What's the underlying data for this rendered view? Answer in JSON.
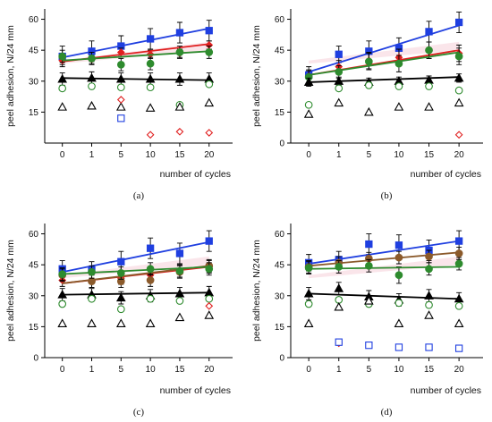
{
  "figure": {
    "colors": {
      "blue": "#1f3fe0",
      "red": "#e02020",
      "green": "#2e8b2e",
      "brown": "#8b5a2b",
      "black": "#000000",
      "pink_band": "#f4c6d0"
    }
  },
  "chart_data": [
    {
      "panel_label": "(a)",
      "type": "scatter",
      "xlabel": "number of cycles",
      "ylabel": "peel adhesion, N/24 mm",
      "xcategories": [
        "0",
        "1",
        "5",
        "10",
        "15",
        "20"
      ],
      "ylim": [
        0,
        65
      ],
      "yticks": [
        15,
        30,
        45,
        60
      ],
      "series": [
        {
          "color": "blue",
          "marker": "square",
          "filled": true,
          "values": [
            42,
            44.5,
            47,
            50.5,
            53.5,
            54.5
          ],
          "errors": [
            5,
            5,
            5,
            5,
            5,
            5
          ],
          "trend": [
            41.5,
            55.5
          ]
        },
        {
          "color": "red",
          "marker": "diamond",
          "filled": true,
          "values": [
            40,
            40.5,
            44,
            43,
            43.5,
            47.5
          ],
          "errors": [
            2,
            2,
            2,
            2,
            2,
            2
          ],
          "trend": [
            39.5,
            48
          ]
        },
        {
          "color": "green",
          "marker": "circle",
          "filled": true,
          "values": [
            42,
            41,
            38,
            38.5,
            44,
            44
          ],
          "errors": [
            3,
            3,
            3,
            3,
            3,
            3
          ],
          "trend": [
            40,
            44.5
          ]
        },
        {
          "color": "black",
          "marker": "triangle",
          "filled": true,
          "values": [
            31,
            31.5,
            31,
            31,
            31,
            31
          ],
          "errors": [
            3,
            3,
            3,
            3,
            3,
            3
          ],
          "trend": [
            31.5,
            30.5
          ]
        },
        {
          "color": "green",
          "marker": "circle",
          "filled": false,
          "values": [
            26.5,
            27.5,
            27,
            27,
            18.5,
            28.5
          ],
          "errors": [],
          "trend": null
        },
        {
          "color": "black",
          "marker": "triangle",
          "filled": false,
          "values": [
            17.5,
            18,
            17.5,
            17,
            17.5,
            19.5
          ],
          "errors": [],
          "trend": null
        },
        {
          "color": "red",
          "marker": "diamond",
          "filled": false,
          "values": [
            null,
            null,
            21,
            4,
            5.5,
            5
          ],
          "errors": [],
          "trend": null
        },
        {
          "color": "blue",
          "marker": "square",
          "filled": false,
          "values": [
            null,
            null,
            12,
            null,
            null,
            null
          ],
          "errors": [],
          "trend": null
        }
      ]
    },
    {
      "panel_label": "(b)",
      "type": "scatter",
      "xlabel": "number of cycles",
      "ylabel": "peel adhesion, N/24 mm",
      "xcategories": [
        "0",
        "1",
        "5",
        "10",
        "15",
        "20"
      ],
      "ylim": [
        0,
        65
      ],
      "yticks": [
        0,
        15,
        30,
        45,
        60
      ],
      "series": [
        {
          "color": "blue",
          "marker": "square",
          "filled": true,
          "values": [
            33,
            43,
            44.5,
            46,
            54,
            58.5
          ],
          "errors": [
            4,
            4,
            5,
            5,
            5,
            5
          ],
          "trend": [
            34.5,
            57
          ]
        },
        {
          "color": "red",
          "marker": "diamond",
          "filled": true,
          "values": [
            32.5,
            37,
            40,
            41.5,
            45,
            43.5
          ],
          "errors": [
            3,
            3,
            4,
            4,
            4,
            4
          ],
          "trend": [
            33,
            45
          ]
        },
        {
          "color": "green",
          "marker": "circle",
          "filled": true,
          "values": [
            32,
            34.5,
            39.5,
            38.5,
            45,
            42
          ],
          "errors": [
            3,
            3,
            4,
            4,
            4,
            4
          ],
          "trend": [
            33,
            44
          ]
        },
        {
          "color": "black",
          "marker": "triangle",
          "filled": true,
          "values": [
            29.5,
            30,
            29.5,
            30,
            30.5,
            31.5
          ],
          "errors": [
            2,
            2,
            2,
            2,
            2,
            2
          ],
          "trend": [
            29.5,
            32
          ]
        },
        {
          "color": "green",
          "marker": "circle",
          "filled": false,
          "values": [
            18.5,
            26.5,
            28,
            27.5,
            27.5,
            25.5
          ],
          "errors": [],
          "trend": null
        },
        {
          "color": "black",
          "marker": "triangle",
          "filled": false,
          "values": [
            14,
            19.5,
            15,
            17.5,
            17.5,
            19.5
          ],
          "errors": [],
          "trend": null
        },
        {
          "color": "red",
          "marker": "diamond",
          "filled": false,
          "values": [
            null,
            null,
            null,
            null,
            null,
            4
          ],
          "errors": [],
          "trend": null
        }
      ]
    },
    {
      "panel_label": "(c)",
      "type": "scatter",
      "xlabel": "number of cycles",
      "ylabel": "peel adhesion, N/24 mm",
      "xcategories": [
        "0",
        "1",
        "5",
        "10",
        "15",
        "20"
      ],
      "ylim": [
        0,
        65
      ],
      "yticks": [
        0,
        15,
        30,
        45,
        60
      ],
      "series": [
        {
          "color": "blue",
          "marker": "square",
          "filled": true,
          "values": [
            43,
            42.5,
            46.5,
            53,
            50.5,
            56.5
          ],
          "errors": [
            4,
            4,
            5,
            5,
            5,
            5
          ],
          "trend": [
            41.5,
            56
          ]
        },
        {
          "color": "red",
          "marker": "diamond",
          "filled": true,
          "values": [
            37.5,
            37,
            38.5,
            40,
            42,
            44
          ],
          "errors": [
            3,
            3,
            3,
            3,
            3,
            3
          ],
          "trend": [
            36,
            44
          ]
        },
        {
          "color": "brown",
          "marker": "circle",
          "filled": true,
          "values": [
            40,
            37,
            37,
            37.5,
            41.5,
            44.5
          ],
          "errors": [
            3,
            3,
            3,
            3,
            3,
            3
          ],
          "trend": [
            36,
            44.5
          ]
        },
        {
          "color": "green",
          "marker": "circle",
          "filled": true,
          "values": [
            40.5,
            41.5,
            41,
            43,
            42,
            43
          ],
          "errors": [
            3,
            3,
            3,
            3,
            3,
            3
          ],
          "trend": [
            40.5,
            44
          ]
        },
        {
          "color": "black",
          "marker": "triangle",
          "filled": true,
          "values": [
            30.5,
            30.5,
            29,
            30,
            31,
            31.5
          ],
          "errors": [
            3,
            3,
            3,
            3,
            3,
            3
          ],
          "trend": [
            30.5,
            31.5
          ]
        },
        {
          "color": "green",
          "marker": "circle",
          "filled": false,
          "values": [
            26,
            28.5,
            23.5,
            28.5,
            27.5,
            28.5
          ],
          "errors": [],
          "trend": null
        },
        {
          "color": "black",
          "marker": "triangle",
          "filled": false,
          "values": [
            16.5,
            16.5,
            16.5,
            16.5,
            19.5,
            20.5
          ],
          "errors": [],
          "trend": null
        },
        {
          "color": "red",
          "marker": "diamond",
          "filled": false,
          "values": [
            null,
            null,
            null,
            null,
            null,
            25
          ],
          "errors": [],
          "trend": null
        }
      ]
    },
    {
      "panel_label": "(d)",
      "type": "scatter",
      "xlabel": "number of cycles",
      "ylabel": "peel adhesion, N/24 mm",
      "xcategories": [
        "0",
        "1",
        "5",
        "10",
        "15",
        "20"
      ],
      "ylim": [
        0,
        65
      ],
      "yticks": [
        0,
        15,
        30,
        45,
        60
      ],
      "series": [
        {
          "color": "blue",
          "marker": "square",
          "filled": true,
          "values": [
            46,
            47.5,
            55,
            54.5,
            52,
            56.5
          ],
          "errors": [
            4,
            4,
            5,
            5,
            5,
            5
          ],
          "trend": [
            45.5,
            56.5
          ]
        },
        {
          "color": "brown",
          "marker": "circle",
          "filled": true,
          "values": [
            44,
            46,
            48,
            48.5,
            49,
            50.5
          ],
          "errors": [
            3,
            3,
            3,
            3,
            3,
            3
          ],
          "trend": [
            44.5,
            51
          ]
        },
        {
          "color": "green",
          "marker": "circle",
          "filled": true,
          "values": [
            43.5,
            44,
            44.5,
            40,
            43,
            45.5
          ],
          "errors": [
            3,
            3,
            3,
            4,
            3,
            3
          ],
          "trend": [
            43,
            44
          ]
        },
        {
          "color": "black",
          "marker": "triangle",
          "filled": true,
          "values": [
            31,
            33.5,
            29.5,
            28,
            30,
            28.5
          ],
          "errors": [
            3,
            3,
            3,
            3,
            3,
            3
          ],
          "trend": [
            31,
            28.5
          ]
        },
        {
          "color": "green",
          "marker": "circle",
          "filled": false,
          "values": [
            26,
            28,
            26,
            26.5,
            25.5,
            25
          ],
          "errors": [],
          "trend": null
        },
        {
          "color": "black",
          "marker": "triangle",
          "filled": false,
          "values": [
            16.5,
            24.5,
            27.5,
            16.5,
            20.5,
            16.5
          ],
          "errors": [],
          "trend": null
        },
        {
          "color": "red",
          "marker": "diamond",
          "filled": false,
          "values": [
            null,
            7,
            null,
            null,
            null,
            null
          ],
          "errors": [],
          "trend": null
        },
        {
          "color": "blue",
          "marker": "square",
          "filled": false,
          "values": [
            null,
            7.5,
            6,
            5,
            5,
            4.5
          ],
          "errors": [],
          "trend": null
        }
      ]
    }
  ]
}
